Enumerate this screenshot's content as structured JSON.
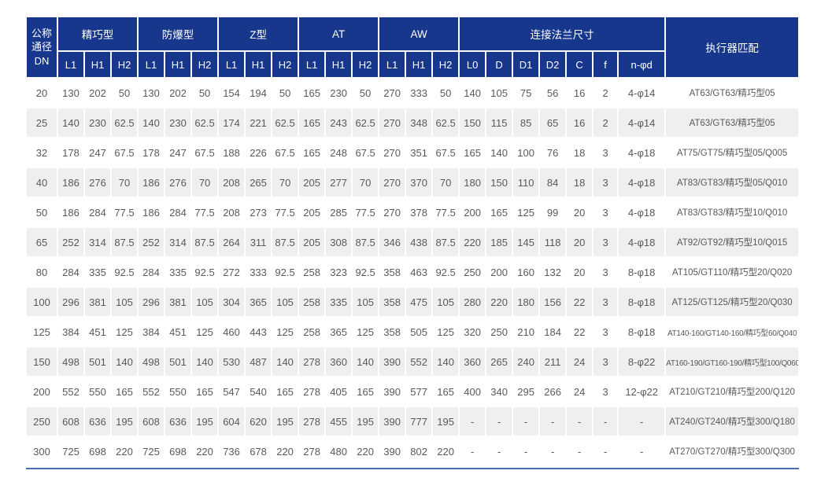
{
  "table": {
    "header": {
      "dn_label": "公称\n通径\nDN",
      "actuator_label": "执行器匹配",
      "groups": [
        {
          "label": "精巧型",
          "cols": [
            "L1",
            "H1",
            "H2"
          ]
        },
        {
          "label": "防爆型",
          "cols": [
            "L1",
            "H1",
            "H2"
          ]
        },
        {
          "label": "Z型",
          "cols": [
            "L1",
            "H1",
            "H2"
          ]
        },
        {
          "label": "AT",
          "cols": [
            "L1",
            "H1",
            "H2"
          ]
        },
        {
          "label": "AW",
          "cols": [
            "L1",
            "H1",
            "H2"
          ]
        },
        {
          "label": "连接法兰尺寸",
          "cols": [
            "L0",
            "D",
            "D1",
            "D2",
            "C",
            "f",
            "n-φd"
          ]
        }
      ]
    },
    "rows": [
      {
        "dn": "20",
        "values": [
          "130",
          "202",
          "50",
          "130",
          "202",
          "50",
          "154",
          "194",
          "50",
          "165",
          "230",
          "50",
          "270",
          "333",
          "50",
          "140",
          "105",
          "75",
          "56",
          "16",
          "2",
          "4-φ14"
        ],
        "actuator": "AT63/GT63/精巧型05"
      },
      {
        "dn": "25",
        "values": [
          "140",
          "230",
          "62.5",
          "140",
          "230",
          "62.5",
          "174",
          "221",
          "62.5",
          "165",
          "243",
          "62.5",
          "270",
          "348",
          "62.5",
          "150",
          "115",
          "85",
          "65",
          "16",
          "2",
          "4-φ14"
        ],
        "actuator": "AT63/GT63/精巧型05"
      },
      {
        "dn": "32",
        "values": [
          "178",
          "247",
          "67.5",
          "178",
          "247",
          "67.5",
          "188",
          "226",
          "67.5",
          "165",
          "248",
          "67.5",
          "270",
          "351",
          "67.5",
          "165",
          "140",
          "100",
          "76",
          "18",
          "3",
          "4-φ18"
        ],
        "actuator": "AT75/GT75/精巧型05/Q005"
      },
      {
        "dn": "40",
        "values": [
          "186",
          "276",
          "70",
          "186",
          "276",
          "70",
          "208",
          "265",
          "70",
          "205",
          "277",
          "70",
          "270",
          "370",
          "70",
          "180",
          "150",
          "110",
          "84",
          "18",
          "3",
          "4-φ18"
        ],
        "actuator": "AT83/GT83/精巧型05/Q010"
      },
      {
        "dn": "50",
        "values": [
          "186",
          "284",
          "77.5",
          "186",
          "284",
          "77.5",
          "208",
          "273",
          "77.5",
          "205",
          "285",
          "77.5",
          "270",
          "378",
          "77.5",
          "200",
          "165",
          "125",
          "99",
          "20",
          "3",
          "4-φ18"
        ],
        "actuator": "AT83/GT83/精巧型10/Q010"
      },
      {
        "dn": "65",
        "values": [
          "252",
          "314",
          "87.5",
          "252",
          "314",
          "87.5",
          "264",
          "311",
          "87.5",
          "205",
          "308",
          "87.5",
          "346",
          "438",
          "87.5",
          "220",
          "185",
          "145",
          "118",
          "20",
          "3",
          "4-φ18"
        ],
        "actuator": "AT92/GT92/精巧型10/Q015"
      },
      {
        "dn": "80",
        "values": [
          "284",
          "335",
          "92.5",
          "284",
          "335",
          "92.5",
          "272",
          "333",
          "92.5",
          "258",
          "323",
          "92.5",
          "358",
          "463",
          "92.5",
          "250",
          "200",
          "160",
          "132",
          "20",
          "3",
          "8-φ18"
        ],
        "actuator": "AT105/GT110/精巧型20/Q020"
      },
      {
        "dn": "100",
        "values": [
          "296",
          "381",
          "105",
          "296",
          "381",
          "105",
          "304",
          "365",
          "105",
          "258",
          "335",
          "105",
          "358",
          "475",
          "105",
          "280",
          "220",
          "180",
          "156",
          "22",
          "3",
          "8-φ18"
        ],
        "actuator": "AT125/GT125/精巧型20/Q030"
      },
      {
        "dn": "125",
        "values": [
          "384",
          "451",
          "125",
          "384",
          "451",
          "125",
          "460",
          "443",
          "125",
          "258",
          "365",
          "125",
          "358",
          "505",
          "125",
          "320",
          "250",
          "210",
          "184",
          "22",
          "3",
          "8-φ18"
        ],
        "actuator": "AT140-160/GT140-160/精巧型60/Q040"
      },
      {
        "dn": "150",
        "values": [
          "498",
          "501",
          "140",
          "498",
          "501",
          "140",
          "530",
          "487",
          "140",
          "278",
          "360",
          "140",
          "390",
          "552",
          "140",
          "360",
          "265",
          "240",
          "211",
          "24",
          "3",
          "8-φ22"
        ],
        "actuator": "AT160-190/GT160-190/精巧型100/Q060"
      },
      {
        "dn": "200",
        "values": [
          "552",
          "550",
          "165",
          "552",
          "550",
          "165",
          "547",
          "540",
          "165",
          "278",
          "405",
          "165",
          "390",
          "577",
          "165",
          "400",
          "340",
          "295",
          "266",
          "24",
          "3",
          "12-φ22"
        ],
        "actuator": "AT210/GT210/精巧型200/Q120"
      },
      {
        "dn": "250",
        "values": [
          "608",
          "636",
          "195",
          "608",
          "636",
          "195",
          "604",
          "620",
          "195",
          "278",
          "455",
          "195",
          "390",
          "777",
          "195",
          "-",
          "-",
          "-",
          "-",
          "-",
          "-",
          "-"
        ],
        "actuator": "AT240/GT240/精巧型300/Q180"
      },
      {
        "dn": "300",
        "values": [
          "725",
          "698",
          "220",
          "725",
          "698",
          "220",
          "736",
          "678",
          "220",
          "278",
          "480",
          "220",
          "390",
          "802",
          "220",
          "-",
          "-",
          "-",
          "-",
          "-",
          "-",
          "-"
        ],
        "actuator": "AT270/GT270/精巧型300/Q300"
      }
    ]
  },
  "colors": {
    "header_bg": "#17378c",
    "header_text": "#ffffff",
    "stripe_bg": "#efefef",
    "cell_text": "#58595c",
    "bottom_rule": "#4a6cb3"
  }
}
